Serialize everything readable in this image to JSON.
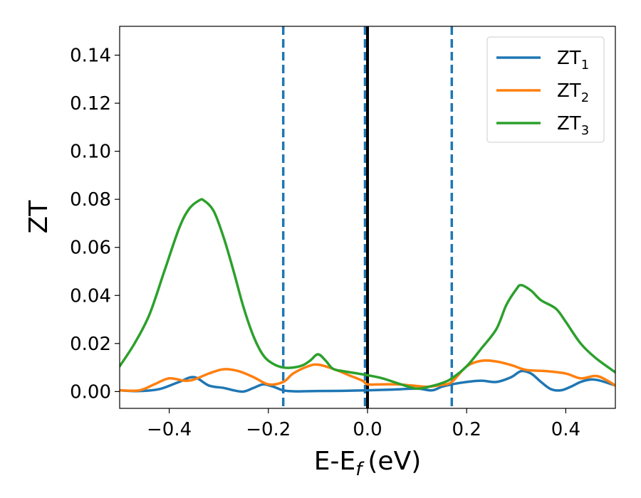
{
  "chart_data": {
    "type": "line",
    "xlabel": "E-E",
    "xlabel_subscript": "f",
    "xlabel_unit": "(eV)",
    "ylabel": "ZT",
    "xlim": [
      -0.5,
      0.5
    ],
    "ylim": [
      -0.007,
      0.152
    ],
    "x_ticks": [
      -0.4,
      -0.2,
      0.0,
      0.2,
      0.4
    ],
    "x_tick_labels": [
      "−0.4",
      "−0.2",
      "0.0",
      "0.2",
      "0.4"
    ],
    "y_ticks": [
      0.0,
      0.02,
      0.04,
      0.06,
      0.08,
      0.1,
      0.12,
      0.14
    ],
    "y_tick_labels": [
      "0.00",
      "0.02",
      "0.04",
      "0.06",
      "0.08",
      "0.10",
      "0.12",
      "0.14"
    ],
    "grid": false,
    "legend_position": "top-right",
    "series": [
      {
        "name": "ZT",
        "subscript": "1",
        "color": "#1f77b4",
        "x": [
          -0.5,
          -0.46,
          -0.42,
          -0.38,
          -0.35,
          -0.32,
          -0.29,
          -0.27,
          -0.25,
          -0.23,
          -0.21,
          -0.19,
          -0.17,
          -0.15,
          -0.13,
          -0.1,
          -0.05,
          0.0,
          0.05,
          0.1,
          0.13,
          0.15,
          0.17,
          0.2,
          0.23,
          0.26,
          0.29,
          0.31,
          0.33,
          0.35,
          0.37,
          0.39,
          0.41,
          0.43,
          0.45,
          0.47,
          0.5
        ],
        "y": [
          0.0005,
          0.0002,
          0.001,
          0.004,
          0.006,
          0.0025,
          0.0015,
          0.0005,
          0.0,
          0.0015,
          0.003,
          0.002,
          0.0005,
          0.0001,
          0.0001,
          0.0002,
          0.0003,
          0.0005,
          0.0008,
          0.0012,
          0.0005,
          0.002,
          0.003,
          0.004,
          0.0045,
          0.004,
          0.006,
          0.0085,
          0.0075,
          0.004,
          0.001,
          0.0005,
          0.002,
          0.004,
          0.005,
          0.0045,
          0.0025
        ]
      },
      {
        "name": "ZT",
        "subscript": "2",
        "color": "#ff7f0e",
        "x": [
          -0.5,
          -0.46,
          -0.43,
          -0.4,
          -0.37,
          -0.35,
          -0.32,
          -0.29,
          -0.26,
          -0.23,
          -0.2,
          -0.17,
          -0.15,
          -0.12,
          -0.1,
          -0.07,
          -0.04,
          -0.01,
          0.0,
          0.03,
          0.06,
          0.09,
          0.12,
          0.15,
          0.17,
          0.2,
          0.23,
          0.26,
          0.29,
          0.32,
          0.36,
          0.4,
          0.43,
          0.46,
          0.48,
          0.5
        ],
        "y": [
          0.0005,
          0.0005,
          0.003,
          0.0055,
          0.0045,
          0.005,
          0.0075,
          0.0093,
          0.0085,
          0.006,
          0.003,
          0.004,
          0.0075,
          0.0105,
          0.0112,
          0.0095,
          0.007,
          0.0045,
          0.003,
          0.003,
          0.003,
          0.0025,
          0.002,
          0.0028,
          0.004,
          0.0105,
          0.0128,
          0.0125,
          0.011,
          0.009,
          0.0085,
          0.0075,
          0.0055,
          0.0065,
          0.005,
          0.0025
        ]
      },
      {
        "name": "ZT",
        "subscript": "3",
        "color": "#2ca02c",
        "x": [
          -0.5,
          -0.47,
          -0.44,
          -0.41,
          -0.38,
          -0.36,
          -0.34,
          -0.33,
          -0.31,
          -0.29,
          -0.27,
          -0.25,
          -0.23,
          -0.21,
          -0.19,
          -0.17,
          -0.15,
          -0.13,
          -0.115,
          -0.1,
          -0.085,
          -0.07,
          -0.05,
          -0.02,
          0.0,
          0.03,
          0.06,
          0.08,
          0.1,
          0.12,
          0.15,
          0.17,
          0.2,
          0.23,
          0.26,
          0.28,
          0.3,
          0.31,
          0.33,
          0.35,
          0.38,
          0.4,
          0.43,
          0.46,
          0.5
        ],
        "y": [
          0.0105,
          0.02,
          0.032,
          0.05,
          0.068,
          0.076,
          0.0795,
          0.0795,
          0.075,
          0.064,
          0.05,
          0.035,
          0.023,
          0.015,
          0.0115,
          0.01,
          0.01,
          0.011,
          0.013,
          0.0155,
          0.013,
          0.0095,
          0.0085,
          0.0075,
          0.0068,
          0.0055,
          0.0035,
          0.0022,
          0.0012,
          0.0018,
          0.0035,
          0.0055,
          0.0105,
          0.018,
          0.026,
          0.036,
          0.0425,
          0.0443,
          0.042,
          0.038,
          0.0345,
          0.029,
          0.02,
          0.014,
          0.008
        ]
      }
    ],
    "vlines": [
      {
        "x": -0.17,
        "style": "dashed",
        "color": "#1f77b4"
      },
      {
        "x": -0.005,
        "style": "dashed",
        "color": "#1f77b4"
      },
      {
        "x": 0.0,
        "style": "solid",
        "color": "#000000"
      },
      {
        "x": 0.17,
        "style": "dashed",
        "color": "#1f77b4"
      }
    ]
  }
}
